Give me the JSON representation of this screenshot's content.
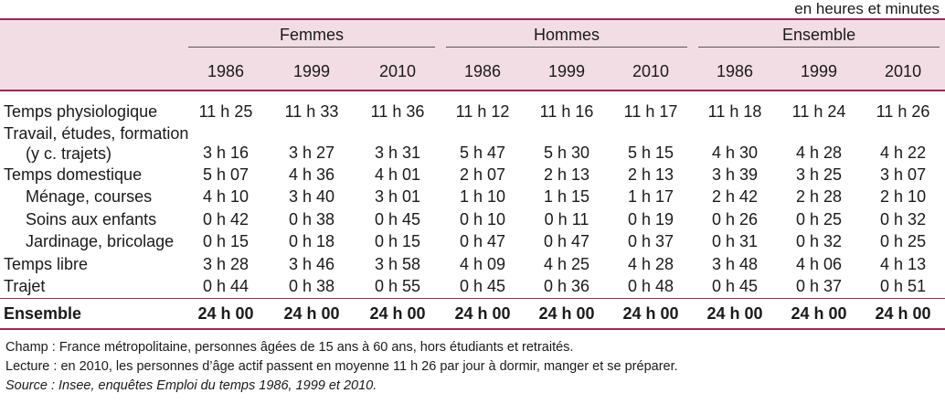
{
  "unit_note": "en heures et minutes",
  "groups": [
    "Femmes",
    "Hommes",
    "Ensemble"
  ],
  "years": [
    "1986",
    "1999",
    "2010",
    "1986",
    "1999",
    "2010",
    "1986",
    "1999",
    "2010"
  ],
  "rows": [
    {
      "label": "Temps physiologique",
      "indent": false,
      "values": [
        "11 h 25",
        "11 h 33",
        "11 h 36",
        "11 h 12",
        "11 h 16",
        "11 h 17",
        "11 h 18",
        "11 h 24",
        "11 h 26"
      ]
    },
    {
      "label": "Travail, études, formation",
      "label2": "(y c. trajets)",
      "indent": false,
      "values": [
        "3 h 16",
        "3 h 27",
        "3 h 31",
        "5 h 47",
        "5 h 30",
        "5 h 15",
        "4 h 30",
        "4 h 28",
        "4 h 22"
      ]
    },
    {
      "label": "Temps domestique",
      "indent": false,
      "values": [
        "5 h 07",
        "4 h 36",
        "4 h 01",
        "2 h 07",
        "2 h 13",
        "2 h 13",
        "3 h 39",
        "3 h 25",
        "3 h 07"
      ]
    },
    {
      "label": "Ménage, courses",
      "indent": true,
      "values": [
        "4 h 10",
        "3 h 40",
        "3 h 01",
        "1 h 10",
        "1 h 15",
        "1 h 17",
        "2 h 42",
        "2 h 28",
        "2 h 10"
      ]
    },
    {
      "label": "Soins aux enfants",
      "indent": true,
      "values": [
        "0 h 42",
        "0 h 38",
        "0 h 45",
        "0 h 10",
        "0 h 11",
        "0 h 19",
        "0 h 26",
        "0 h 25",
        "0 h 32"
      ]
    },
    {
      "label": "Jardinage, bricolage",
      "indent": true,
      "values": [
        "0 h 15",
        "0 h 18",
        "0 h 15",
        "0 h 47",
        "0 h 47",
        "0 h 37",
        "0 h 31",
        "0 h 32",
        "0 h 25"
      ]
    },
    {
      "label": "Temps libre",
      "indent": false,
      "values": [
        "3 h 28",
        "3 h 46",
        "3 h 58",
        "4 h 09",
        "4 h 25",
        "4 h 28",
        "3 h 48",
        "4 h 06",
        "4 h 13"
      ]
    },
    {
      "label": "Trajet",
      "indent": false,
      "values": [
        "0 h 44",
        "0 h 38",
        "0 h 55",
        "0 h 45",
        "0 h 36",
        "0 h 48",
        "0 h 45",
        "0 h 37",
        "0 h 51"
      ]
    }
  ],
  "total": {
    "label": "Ensemble",
    "values": [
      "24 h 00",
      "24 h 00",
      "24 h 00",
      "24 h 00",
      "24 h 00",
      "24 h 00",
      "24 h 00",
      "24 h 00",
      "24 h 00"
    ]
  },
  "notes": {
    "champ": "Champ : France métropolitaine, personnes âgées de 15 ans à 60 ans, hors étudiants et retraités.",
    "lecture": "Lecture : en 2010, les personnes d’âge actif passent en moyenne 11 h 26 par jour à dormir, manger et se préparer.",
    "source": "Source : Insee, enquêtes Emploi du temps 1986, 1999 et 2010."
  }
}
